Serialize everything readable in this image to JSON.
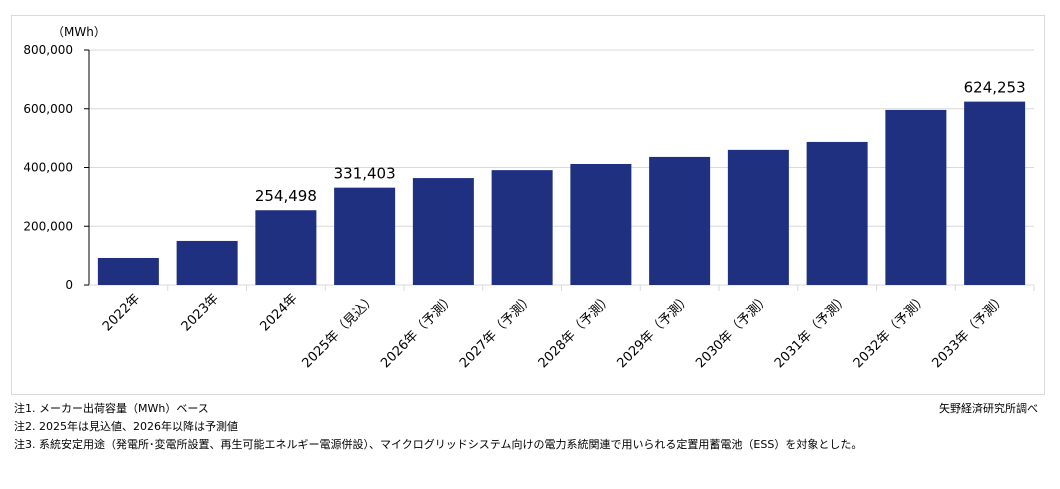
{
  "chart_data": {
    "type": "bar",
    "unit_label": "（MWh）",
    "categories": [
      "2022年",
      "2023年",
      "2024年",
      "2025年（見込）",
      "2026年（予測）",
      "2027年（予測）",
      "2028年（予測）",
      "2029年（予測）",
      "2030年（予測）",
      "2031年（予測）",
      "2032年（予測）",
      "2033年（予測）"
    ],
    "values": [
      92000,
      150000,
      254498,
      331403,
      364000,
      391000,
      412000,
      436000,
      460000,
      487000,
      596000,
      624253
    ],
    "data_labels": {
      "2": "254,498",
      "3": "331,403",
      "11": "624,253"
    },
    "yticks": [
      "0",
      "200,000",
      "400,000",
      "600,000",
      "800,000"
    ],
    "ylim": [
      0,
      800000
    ],
    "grid": true,
    "bar_color": "#1f3080"
  },
  "notes": [
    "注1.  メーカー出荷容量（MWh）ベース",
    "注2.  2025年は見込値、2026年以降は予測値",
    "注3.  系統安定用途（発電所･変電所設置、再生可能エネルギー電源併設）、マイクログリッドシステム向けの電力系統関連で用いられる定置用蓄電池（ESS）を対象とした。"
  ],
  "source": "矢野経済研究所調べ"
}
